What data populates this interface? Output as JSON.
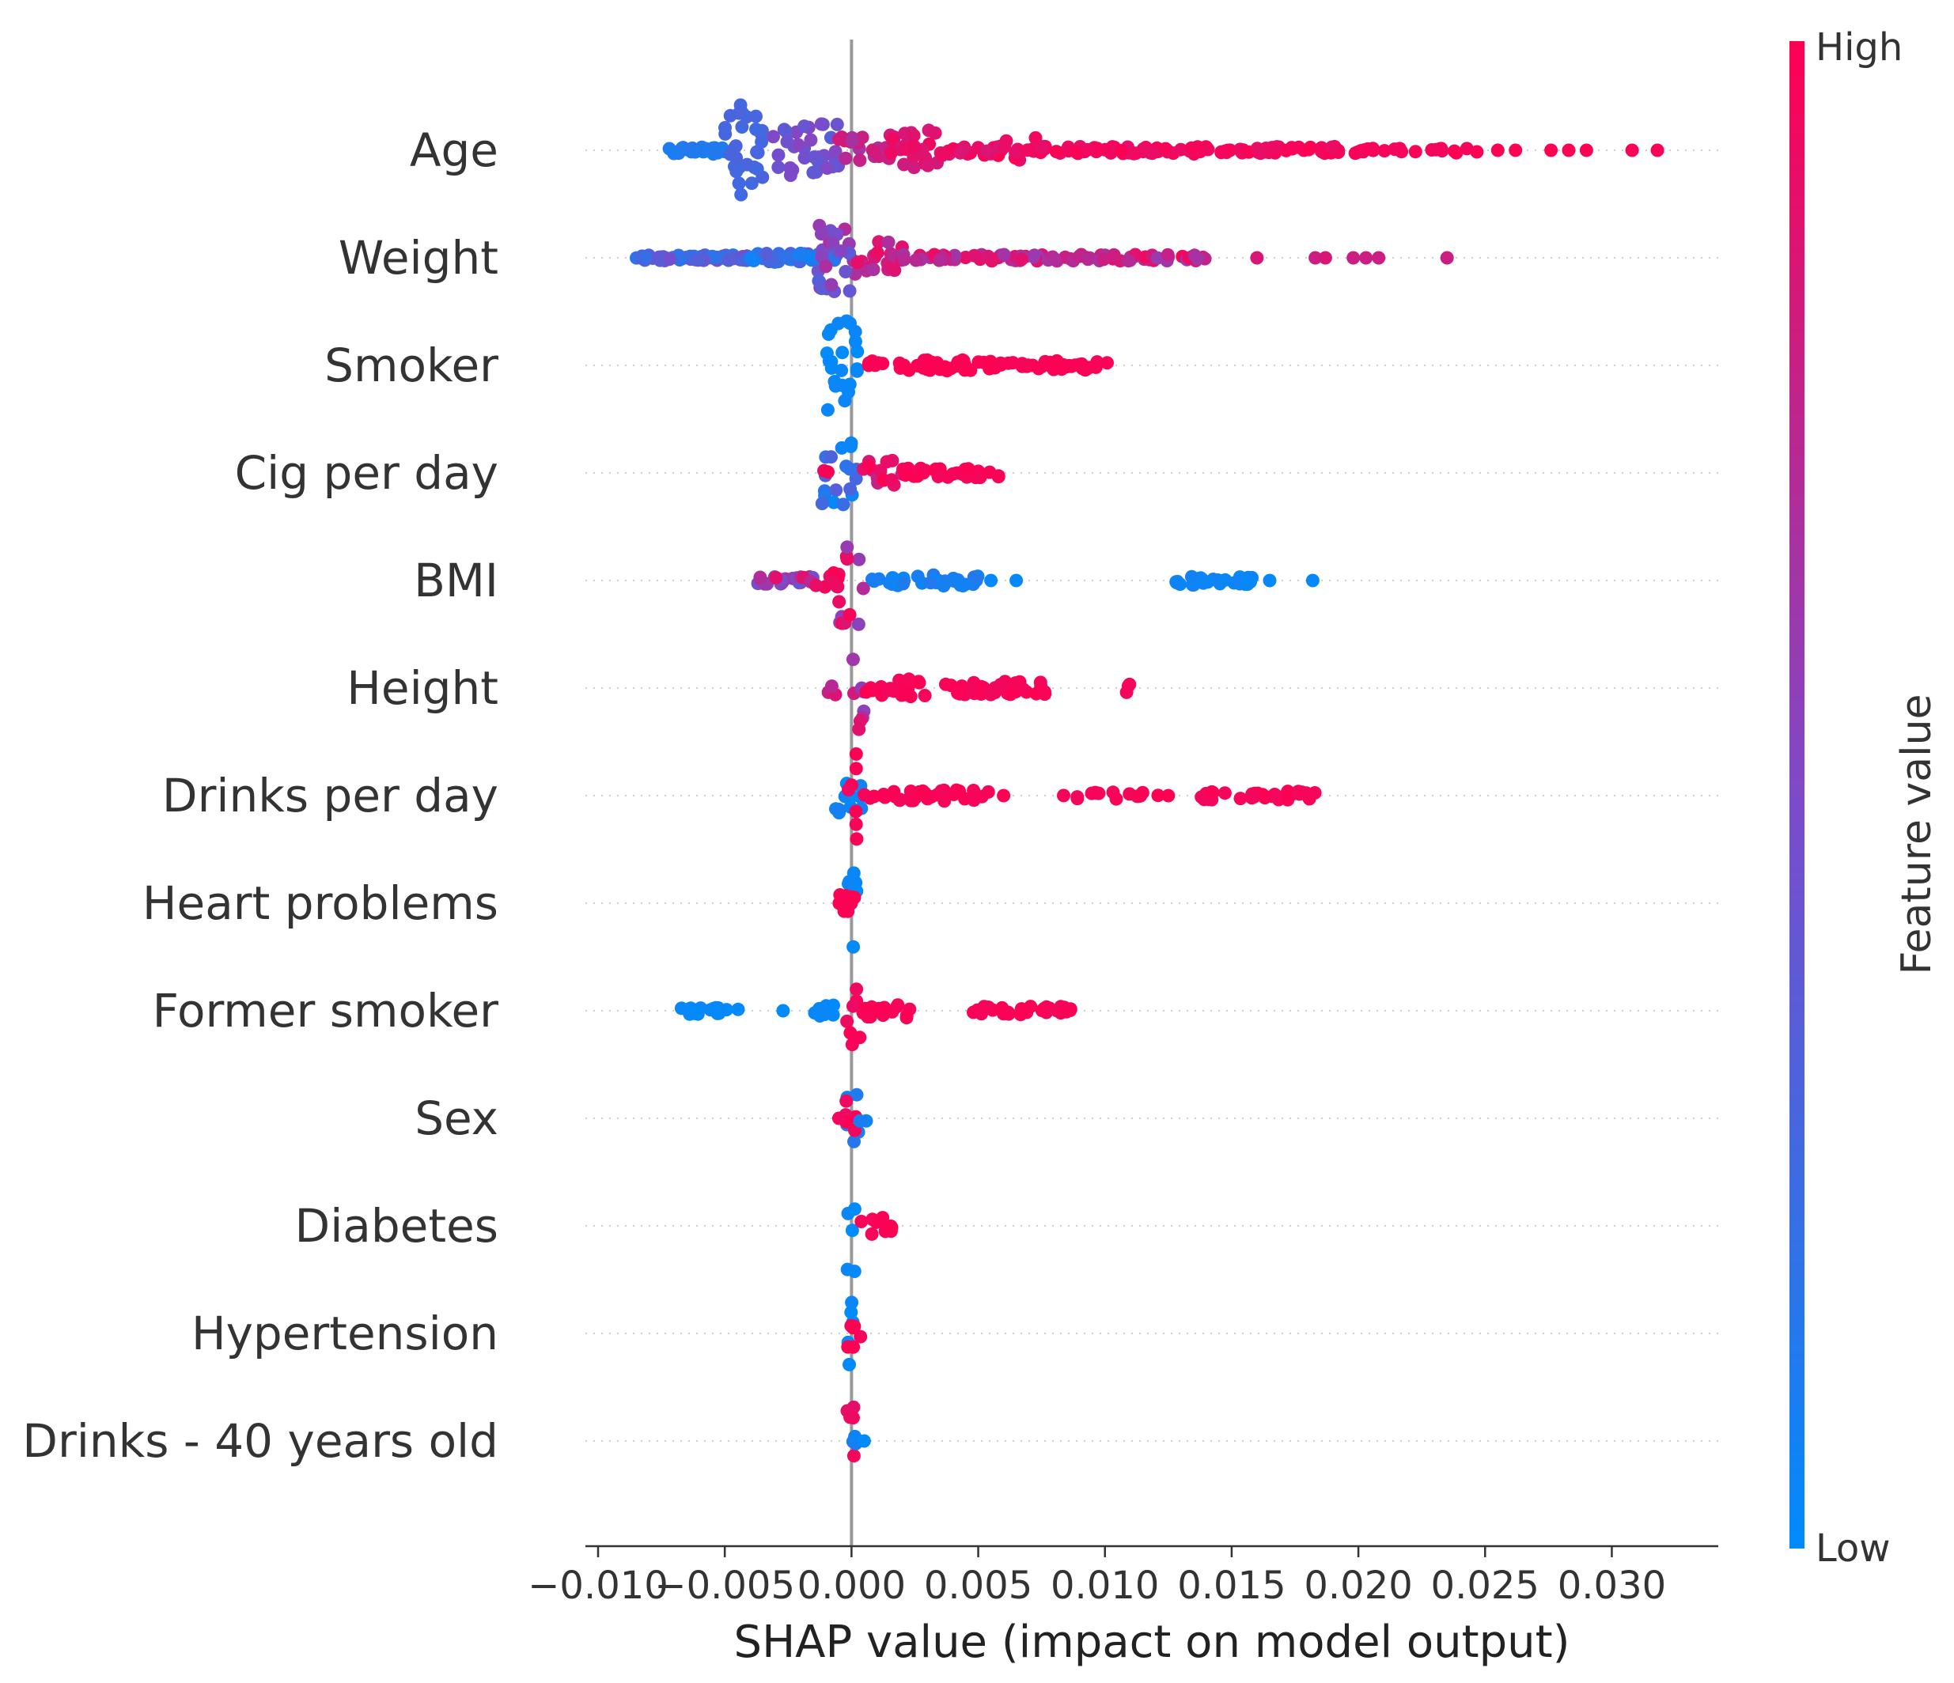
{
  "chart_data": {
    "type": "scatter",
    "subtype": "shap-beeswarm",
    "title": "",
    "xlabel": "SHAP value (impact on model output)",
    "ylabel": "",
    "xlim": [
      -0.0105,
      0.0342
    ],
    "xticks": [
      -0.01,
      -0.005,
      0.0,
      0.005,
      0.01,
      0.015,
      0.02,
      0.025,
      0.03
    ],
    "xtick_labels": [
      "−0.010",
      "−0.005",
      "0.000",
      "0.005",
      "0.010",
      "0.015",
      "0.020",
      "0.025",
      "0.030"
    ],
    "grid": false,
    "legend": {
      "type": "colorbar",
      "placement": "right",
      "title": "Feature value",
      "high_label": "High",
      "low_label": "Low",
      "high_color": "#ff0052",
      "mid_color": "#7d4ac9",
      "low_color": "#008bfb"
    },
    "features": [
      {
        "name": "Age",
        "clusters": [
          [
            -0.0072,
            -0.005,
            0.08,
            0.1,
            0.15,
            4
          ],
          [
            -0.005,
            -0.0032,
            1.0,
            0.25,
            0.3,
            4
          ],
          [
            -0.0032,
            -0.0005,
            0.6,
            0.35,
            0.55,
            3
          ],
          [
            -0.0005,
            0.0015,
            0.3,
            0.65,
            0.85,
            3
          ],
          [
            0.0015,
            0.0035,
            0.45,
            0.8,
            0.95,
            3
          ],
          [
            0.0035,
            0.006,
            0.12,
            0.85,
            1.0,
            2
          ],
          [
            0.006,
            0.0075,
            0.28,
            0.88,
            1.0,
            2
          ],
          [
            0.0075,
            0.02,
            0.08,
            0.9,
            1.0,
            2
          ],
          [
            0.02,
            0.025,
            0.06,
            0.95,
            1.0,
            1
          ]
        ],
        "points": [
          [
            0.0255,
            1.0
          ],
          [
            0.0262,
            1.0
          ],
          [
            0.0276,
            1.0
          ],
          [
            0.0283,
            1.0
          ],
          [
            0.029,
            1.0
          ],
          [
            0.0308,
            1.0
          ],
          [
            0.0318,
            1.0
          ]
        ]
      },
      {
        "name": "Weight",
        "clusters": [
          [
            -0.0085,
            -0.004,
            0.06,
            0.15,
            0.5,
            4
          ],
          [
            -0.004,
            -0.0005,
            0.1,
            0.05,
            0.35,
            4
          ],
          [
            -0.0015,
            0.0002,
            0.75,
            0.3,
            0.7,
            4
          ],
          [
            0.0002,
            0.002,
            0.35,
            0.65,
            0.95,
            3
          ],
          [
            0.002,
            0.014,
            0.07,
            0.6,
            0.95,
            2
          ]
        ],
        "points": [
          [
            0.016,
            0.85
          ],
          [
            0.0183,
            0.8
          ],
          [
            0.0187,
            0.85
          ],
          [
            0.0198,
            0.8
          ],
          [
            0.0203,
            0.8
          ],
          [
            0.0208,
            0.8
          ],
          [
            0.0235,
            0.8
          ]
        ]
      },
      {
        "name": "Smoker",
        "clusters": [
          [
            -0.001,
            0.0003,
            1.0,
            0.0,
            0.05,
            4
          ],
          [
            -0.001,
            -0.0006,
            0.15,
            0.0,
            0.05,
            1
          ],
          [
            0.0006,
            0.005,
            0.12,
            0.97,
            1.0,
            2
          ],
          [
            0.005,
            0.0102,
            0.1,
            0.97,
            1.0,
            2
          ]
        ],
        "points": []
      },
      {
        "name": "Cig per day",
        "clusters": [
          [
            -0.0012,
            0.0004,
            0.7,
            0.0,
            0.35,
            3
          ],
          [
            -0.0012,
            -0.0008,
            0.1,
            0.95,
            1.0,
            1
          ],
          [
            0.0004,
            0.002,
            0.3,
            0.75,
            1.0,
            2
          ],
          [
            0.002,
            0.006,
            0.1,
            0.95,
            1.0,
            2
          ]
        ],
        "points": []
      },
      {
        "name": "BMI",
        "clusters": [
          [
            -0.0038,
            -0.0015,
            0.08,
            0.4,
            0.9,
            3
          ],
          [
            -0.0015,
            -0.0002,
            0.18,
            0.85,
            1.0,
            2
          ],
          [
            -0.0005,
            0.0005,
            1.0,
            0.55,
            1.0,
            3
          ],
          [
            0.0005,
            0.005,
            0.12,
            0.02,
            0.15,
            2
          ],
          [
            0.0125,
            0.016,
            0.1,
            0.02,
            0.1,
            2
          ]
        ],
        "points": [
          [
            0.0055,
            0.02
          ],
          [
            0.0065,
            0.02
          ],
          [
            0.0165,
            0.02
          ],
          [
            0.0182,
            0.02
          ]
        ]
      },
      {
        "name": "Height",
        "clusters": [
          [
            -0.001,
            -0.0002,
            0.15,
            0.6,
            0.9,
            1
          ],
          [
            -0.0002,
            0.0005,
            1.0,
            0.55,
            0.9,
            3
          ],
          [
            0.0005,
            0.003,
            0.2,
            0.95,
            1.0,
            2
          ],
          [
            0.0037,
            0.0078,
            0.15,
            0.95,
            1.0,
            2
          ],
          [
            0.0103,
            0.011,
            0.1,
            0.95,
            1.0,
            1
          ]
        ],
        "points": []
      },
      {
        "name": "Drinks per day",
        "clusters": [
          [
            -0.0008,
            0.0004,
            0.4,
            0.0,
            0.1,
            2
          ],
          [
            -0.0002,
            0.0004,
            1.0,
            0.95,
            1.0,
            3
          ],
          [
            0.0004,
            0.0055,
            0.12,
            0.95,
            1.0,
            2
          ],
          [
            0.0083,
            0.0122,
            0.08,
            0.95,
            1.0,
            1
          ],
          [
            0.0138,
            0.0183,
            0.1,
            0.95,
            1.0,
            2
          ]
        ],
        "points": [
          [
            0.006,
            1.0
          ],
          [
            0.0125,
            1.0
          ]
        ]
      },
      {
        "name": "Heart problems",
        "clusters": [
          [
            -0.0002,
            0.0003,
            1.0,
            0.0,
            0.05,
            3
          ],
          [
            -0.0008,
            0.0002,
            0.22,
            0.97,
            1.0,
            2
          ]
        ],
        "points": []
      },
      {
        "name": "Former smoker",
        "clusters": [
          [
            -0.0068,
            -0.0042,
            0.08,
            0.0,
            0.05,
            2
          ],
          [
            -0.0015,
            -0.0002,
            0.12,
            0.0,
            0.05,
            2
          ],
          [
            -0.0002,
            0.0004,
            1.0,
            0.9,
            1.0,
            3
          ],
          [
            0.0004,
            0.0024,
            0.15,
            0.95,
            1.0,
            2
          ],
          [
            0.0048,
            0.0088,
            0.1,
            0.95,
            1.0,
            2
          ]
        ],
        "points": [
          [
            -0.0027,
            0.0
          ]
        ]
      },
      {
        "name": "Sex",
        "clusters": [
          [
            -0.0003,
            0.0003,
            1.0,
            0.0,
            0.2,
            2
          ],
          [
            -0.0003,
            0.0003,
            0.6,
            0.9,
            1.0,
            2
          ],
          [
            0.0003,
            0.0006,
            0.15,
            0.0,
            0.1,
            1
          ]
        ],
        "points": [
          [
            -0.0005,
            0.95
          ]
        ]
      },
      {
        "name": "Diabetes",
        "clusters": [
          [
            -0.0002,
            0.0002,
            1.0,
            0.0,
            0.05,
            3
          ],
          [
            0.0002,
            0.0016,
            0.18,
            0.97,
            1.0,
            2
          ]
        ],
        "points": []
      },
      {
        "name": "Hypertension",
        "clusters": [
          [
            -0.0002,
            0.0002,
            1.0,
            0.0,
            0.05,
            3
          ],
          [
            -0.0003,
            0.0004,
            0.3,
            0.95,
            1.0,
            2
          ]
        ],
        "points": []
      },
      {
        "name": "Drinks - 40 years old",
        "clusters": [
          [
            -0.0002,
            0.0002,
            1.0,
            0.9,
            1.0,
            3
          ],
          [
            -0.0002,
            0.0002,
            0.3,
            0.0,
            0.1,
            2
          ]
        ],
        "points": [
          [
            0.0005,
            0.0
          ]
        ]
      }
    ]
  }
}
